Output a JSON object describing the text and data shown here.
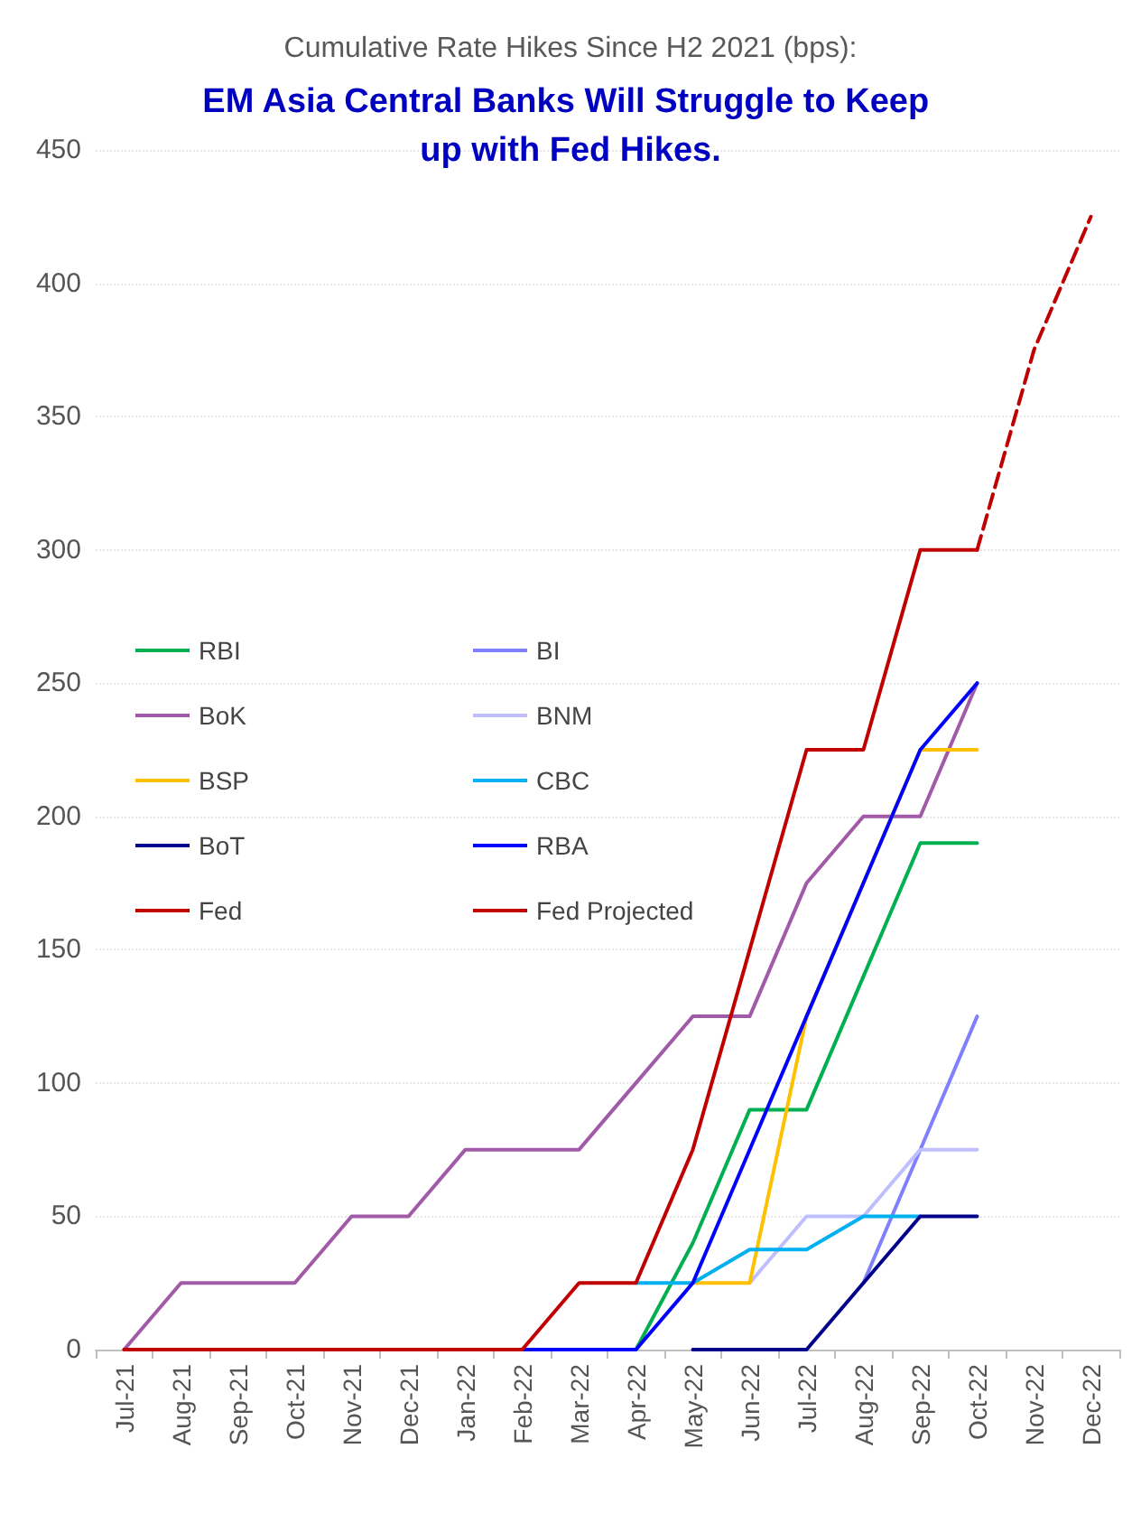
{
  "chart_data": {
    "type": "line",
    "title": "Cumulative Rate Hikes Since H2 2021 (bps):",
    "subtitle": "EM Asia Central Banks Will Struggle to Keep up with Fed Hikes.",
    "categories": [
      "Jul-21",
      "Aug-21",
      "Sep-21",
      "Oct-21",
      "Nov-21",
      "Dec-21",
      "Jan-22",
      "Feb-22",
      "Mar-22",
      "Apr-22",
      "May-22",
      "Jun-22",
      "Jul-22",
      "Aug-22",
      "Sep-22",
      "Oct-22",
      "Nov-22",
      "Dec-22"
    ],
    "series": [
      {
        "name": "RBI",
        "color": "#00b050",
        "values": [
          null,
          null,
          null,
          null,
          null,
          null,
          null,
          null,
          null,
          0,
          40,
          90,
          90,
          140,
          190,
          190,
          null,
          null
        ]
      },
      {
        "name": "BI",
        "color": "#7f7fff",
        "values": [
          null,
          null,
          null,
          null,
          null,
          null,
          null,
          null,
          null,
          null,
          null,
          null,
          null,
          25,
          75,
          125,
          null,
          null
        ]
      },
      {
        "name": "BoK",
        "color": "#a05aa8",
        "values": [
          0,
          25,
          25,
          25,
          50,
          50,
          75,
          75,
          75,
          100,
          125,
          125,
          175,
          200,
          200,
          250,
          null,
          null
        ]
      },
      {
        "name": "BNM",
        "color": "#bfbfff",
        "values": [
          null,
          null,
          null,
          null,
          null,
          null,
          null,
          null,
          null,
          null,
          null,
          25,
          50,
          50,
          75,
          75,
          null,
          null
        ]
      },
      {
        "name": "BSP",
        "color": "#ffc000",
        "values": [
          null,
          null,
          null,
          null,
          null,
          null,
          null,
          null,
          null,
          null,
          25,
          25,
          125,
          175,
          225,
          225,
          null,
          null
        ]
      },
      {
        "name": "CBC",
        "color": "#00b0f0",
        "values": [
          null,
          null,
          null,
          null,
          null,
          null,
          null,
          null,
          null,
          25,
          25,
          37.5,
          37.5,
          50,
          50,
          null,
          null,
          null
        ]
      },
      {
        "name": "BoT",
        "color": "#00008b",
        "values": [
          null,
          null,
          null,
          null,
          null,
          null,
          null,
          null,
          null,
          null,
          0,
          0,
          0,
          25,
          50,
          50,
          null,
          null
        ]
      },
      {
        "name": "RBA",
        "color": "#0000ff",
        "values": [
          null,
          null,
          null,
          null,
          null,
          null,
          null,
          0,
          0,
          0,
          25,
          75,
          125,
          175,
          225,
          250,
          null,
          null
        ]
      },
      {
        "name": "Fed",
        "color": "#c00000",
        "values": [
          0,
          0,
          0,
          0,
          0,
          0,
          0,
          0,
          25,
          25,
          75,
          150,
          225,
          225,
          300,
          300,
          null,
          null
        ]
      },
      {
        "name": "Fed Projected",
        "color": "#c00000",
        "line_style": "dashed",
        "values": [
          null,
          null,
          null,
          null,
          null,
          null,
          null,
          null,
          null,
          null,
          null,
          null,
          null,
          null,
          null,
          300,
          375,
          425
        ]
      }
    ],
    "ylim": [
      0,
      450
    ],
    "yticks": [
      0,
      50,
      100,
      150,
      200,
      250,
      300,
      350,
      400,
      450
    ],
    "grid": "y",
    "legend": "left",
    "marker": "none",
    "line_style": "solid"
  }
}
